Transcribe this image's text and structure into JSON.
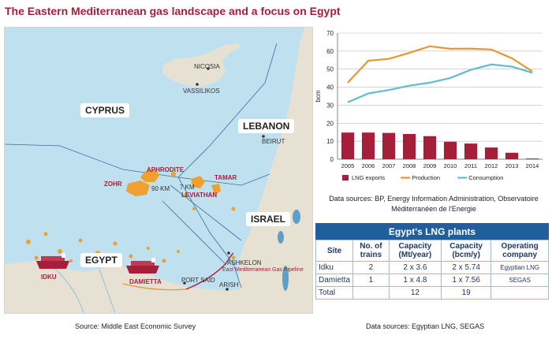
{
  "title": "The Eastern Mediterranean gas landscape and a focus on Egypt",
  "map": {
    "countries": {
      "cyprus": "CYPRUS",
      "lebanon": "LEBANON",
      "israel": "ISRAEL",
      "egypt": "EGYPT"
    },
    "places": {
      "nicosia": "NICOSIA",
      "vassilikos": "VASSILIKOS",
      "beirut": "BEIRUT",
      "ashkelon": "ASHKELON",
      "port_said": "PORT SAID",
      "arish": "ARISH"
    },
    "fields": {
      "aphrodite": "APHRODITE",
      "zohr": "ZOHR",
      "tamar": "TAMAR",
      "leviathan": "LEVIATHAN",
      "idku": "IDKU",
      "damietta": "DAMIETTA"
    },
    "distances": {
      "d90": "90 KM",
      "d7": "7 KM"
    },
    "pipeline": "East Mediterranean Gas Pipeline",
    "source": "Source: Middle East Economic Survey",
    "colors": {
      "sea": "#bfe0ef",
      "land": "#e7e1d3",
      "field": "#f0a030",
      "ship": "#a51f3a"
    }
  },
  "chart_data": {
    "type": "bar+line",
    "categories": [
      "2005",
      "2006",
      "2007",
      "2008",
      "2009",
      "2010",
      "2011",
      "2012",
      "2013",
      "2014"
    ],
    "ylabel": "bcm",
    "ylim": [
      0,
      70
    ],
    "yticks": [
      "0",
      "10",
      "20",
      "30",
      "40",
      "50",
      "60",
      "70"
    ],
    "series": [
      {
        "name": "LNG exports",
        "type": "bar",
        "color": "#a51f3a",
        "values": [
          14.8,
          14.8,
          14.6,
          14.0,
          12.8,
          9.7,
          8.7,
          6.5,
          3.6,
          0.4
        ]
      },
      {
        "name": "Production",
        "type": "line",
        "color": "#e8962e",
        "values": [
          42.5,
          54.7,
          55.7,
          59.0,
          62.7,
          61.3,
          61.4,
          60.9,
          56.1,
          48.8
        ]
      },
      {
        "name": "Consumption",
        "type": "line",
        "color": "#5fbcd3",
        "values": [
          31.6,
          36.5,
          38.4,
          40.8,
          42.5,
          45.1,
          49.6,
          52.6,
          51.4,
          48.0
        ]
      }
    ],
    "grid": true,
    "legend": "bottom"
  },
  "chart_sources": "Data sources: BP, Energy Information Administration, Observatoire Méditerranéen de l'Energie",
  "table": {
    "title": "Egypt's LNG plants",
    "headers": [
      "Site",
      "No. of trains",
      "Capacity (Mt/year)",
      "Capacity (bcm/y)",
      "Operating company"
    ],
    "rows": [
      {
        "site": "Idku",
        "trains": "2",
        "mt": "2 x 3.6",
        "bcm": "2 x 5.74",
        "company": "Egyptian LNG"
      },
      {
        "site": "Damietta",
        "trains": "1",
        "mt": "1 x 4.8",
        "bcm": "1 x 7.56",
        "company": "SEGAS"
      },
      {
        "site": "Total",
        "trains": "",
        "mt": "12",
        "bcm": "19",
        "company": ""
      }
    ],
    "colors": {
      "header": "#1f5f9e",
      "text": "#1f3a63"
    }
  },
  "table_sources": "Data sources: Egyptian LNG, SEGAS"
}
